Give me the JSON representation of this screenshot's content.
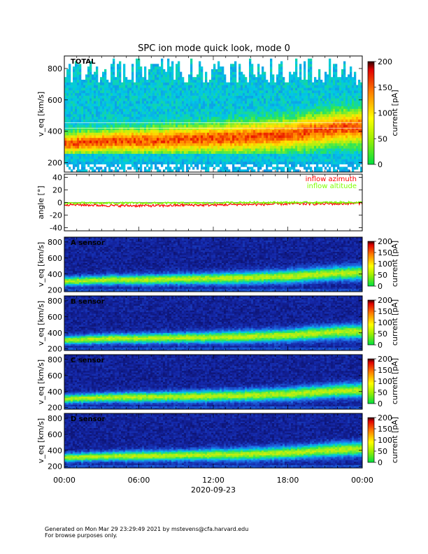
{
  "title": "SPC ion mode quick look, mode 0",
  "footer": {
    "line1": "Generated on Mon Mar 29 23:29:49 2021 by mstevens@cfa.harvard.edu",
    "line2": "For browse purposes only."
  },
  "colors": {
    "red": "#ff0000",
    "green": "#7fff00",
    "white": "#ffffff"
  },
  "chart_data": [
    {
      "type": "heatmap",
      "panel_label": "TOTAL",
      "ylabel": "v_eq [km/s]",
      "yticks": [
        200,
        400,
        600,
        800
      ],
      "ylim": [
        140,
        880
      ],
      "colorbar_label": "current [pA]",
      "colorbar_ticks": [
        0,
        50,
        100,
        150,
        200
      ],
      "colorbar_range": [
        0,
        200
      ],
      "peak_velocity_kms": [
        320,
        330,
        340,
        340,
        345,
        350,
        355,
        360,
        370,
        380,
        400,
        420,
        430
      ],
      "peak_current_pA": 130
    },
    {
      "type": "line",
      "ylabel": "angle [°]",
      "yticks": [
        -40,
        -20,
        0,
        20,
        40
      ],
      "ylim": [
        -45,
        45
      ],
      "series": [
        {
          "name": "inflow azimuth",
          "color": "#ff0000",
          "values": [
            -3,
            -4,
            -5,
            -5,
            -5,
            -4,
            -4,
            -3,
            -3,
            -2,
            -2,
            -2,
            -1
          ]
        },
        {
          "name": "inflow altitude",
          "color": "#7fff00",
          "values": [
            -1,
            -1,
            -1,
            -1,
            -1,
            -1,
            -1,
            0,
            0,
            0,
            0,
            0,
            0
          ]
        }
      ]
    },
    {
      "type": "heatmap",
      "panel_label": "A sensor",
      "ylabel": "v_eq [km/s]",
      "yticks": [
        200,
        400,
        600,
        800
      ],
      "ylim": [
        180,
        860
      ],
      "colorbar_label": "current [pA]",
      "colorbar_ticks": [
        0,
        50,
        100,
        150,
        200
      ],
      "colorbar_range": [
        0,
        200
      ]
    },
    {
      "type": "heatmap",
      "panel_label": "B sensor",
      "ylabel": "v_eq [km/s]",
      "yticks": [
        200,
        400,
        600,
        800
      ],
      "ylim": [
        180,
        860
      ],
      "colorbar_label": "current [pA]",
      "colorbar_ticks": [
        0,
        50,
        100,
        150,
        200
      ],
      "colorbar_range": [
        0,
        200
      ]
    },
    {
      "type": "heatmap",
      "panel_label": "C sensor",
      "ylabel": "v_eq [km/s]",
      "yticks": [
        200,
        400,
        600,
        800
      ],
      "ylim": [
        180,
        860
      ],
      "colorbar_label": "current [pA]",
      "colorbar_ticks": [
        0,
        50,
        100,
        150,
        200
      ],
      "colorbar_range": [
        0,
        200
      ]
    },
    {
      "type": "heatmap",
      "panel_label": "D sensor",
      "ylabel": "v_eq [km/s]",
      "yticks": [
        200,
        400,
        600,
        800
      ],
      "ylim": [
        180,
        860
      ],
      "colorbar_label": "current [pA]",
      "colorbar_ticks": [
        0,
        50,
        100,
        150,
        200
      ],
      "colorbar_range": [
        0,
        200
      ]
    }
  ],
  "x_axis": {
    "ticks": [
      "00:00",
      "06:00",
      "12:00",
      "18:00",
      "00:00"
    ],
    "date": "2020-09-23"
  }
}
